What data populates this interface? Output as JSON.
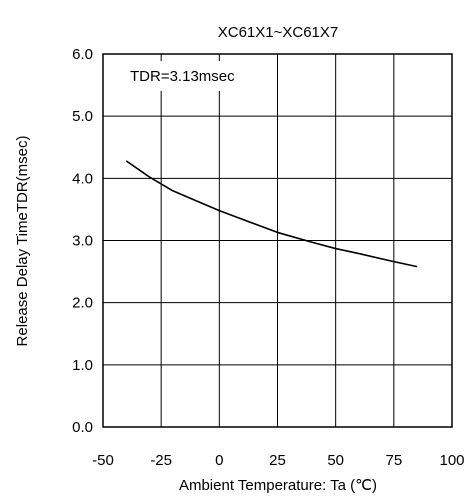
{
  "chart_data": {
    "type": "line",
    "title": "XC61X1~XC61X7",
    "annotation": "TDR=3.13msec",
    "xlabel": "Ambient Temperature: Ta (℃)",
    "ylabel_main": "Release Delay Time",
    "ylabel_symbol": "TDR",
    "ylabel_unit": "(msec)",
    "xlim": [
      -50,
      100
    ],
    "ylim": [
      0,
      6
    ],
    "x_ticks": [
      -50,
      -25,
      0,
      25,
      50,
      75,
      100
    ],
    "x_tick_labels": [
      "-50",
      "-25",
      "0",
      "25",
      "50",
      "75",
      "100"
    ],
    "y_ticks": [
      0,
      1,
      2,
      3,
      4,
      5,
      6
    ],
    "y_tick_labels": [
      "0.0",
      "1.0",
      "2.0",
      "3.0",
      "4.0",
      "5.0",
      "6.0"
    ],
    "grid": true,
    "series": [
      {
        "color": "#000000",
        "x": [
          -40,
          -30,
          -20,
          -10,
          0,
          10,
          25,
          40,
          50,
          60,
          75,
          85
        ],
        "y": [
          4.28,
          4.02,
          3.8,
          3.64,
          3.48,
          3.34,
          3.13,
          2.97,
          2.87,
          2.79,
          2.66,
          2.58
        ]
      }
    ]
  }
}
